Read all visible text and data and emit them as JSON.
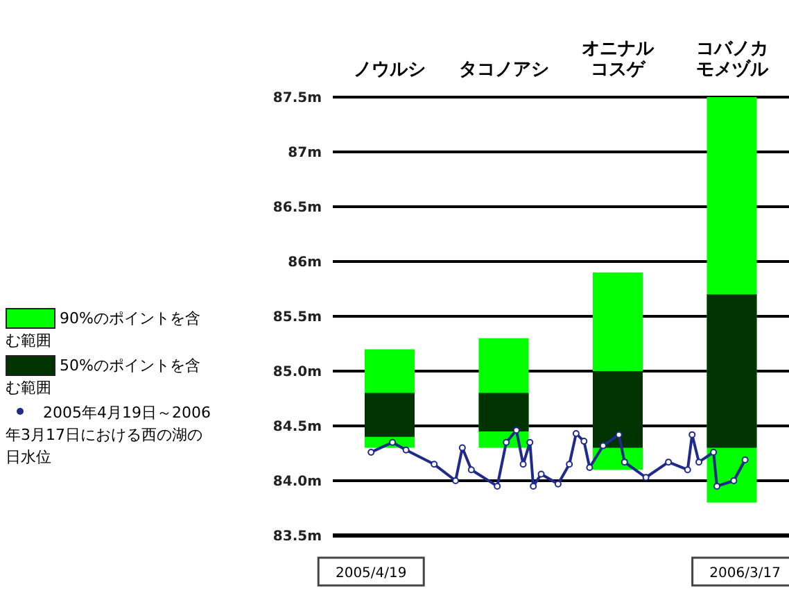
{
  "chart_data": [
    {
      "type": "bar",
      "categories": [
        "ノウルシ",
        "タコノアシ",
        "オニナルコスゲ",
        "コバノカモメヅル"
      ],
      "series": [
        {
          "name": "90%のポイントを含む範囲",
          "color": "#00ff00",
          "base": [
            84.3,
            84.3,
            84.1,
            83.8
          ],
          "values": [
            0.9,
            1.0,
            1.8,
            3.8
          ]
        },
        {
          "name": "50%のポイントを含む範囲",
          "color": "#003300",
          "base": [
            84.4,
            84.45,
            84.3,
            84.3
          ],
          "values": [
            0.4,
            0.35,
            0.7,
            1.4
          ]
        }
      ],
      "ylim": [
        83.5,
        87.5
      ],
      "yticks": [
        {
          "value": 83.5,
          "label": "83.5m"
        },
        {
          "value": 84.0,
          "label": "84.0m"
        },
        {
          "value": 84.5,
          "label": "84.5m"
        },
        {
          "value": 85.0,
          "label": "85.0m"
        },
        {
          "value": 85.5,
          "label": "85.5m"
        },
        {
          "value": 86.0,
          "label": "86m"
        },
        {
          "value": 86.5,
          "label": "86.5m"
        },
        {
          "value": 87.0,
          "label": "87m"
        },
        {
          "value": 87.5,
          "label": "87.5m"
        }
      ],
      "grid": "y",
      "legend": "left"
    },
    {
      "type": "line",
      "series": [
        {
          "name": "2005年4月19日～2006年3月17日における西の湖の日水位",
          "color": "#1f2a8a",
          "marker": "circle",
          "x": [
            "2005-04-19",
            "2005-05-08",
            "2005-05-20",
            "2005-06-14",
            "2005-07-03",
            "2005-07-09",
            "2005-07-17",
            "2005-08-09",
            "2005-08-17",
            "2005-08-26",
            "2005-09-01",
            "2005-09-07",
            "2005-09-10",
            "2005-09-17",
            "2005-10-02",
            "2005-10-12",
            "2005-10-18",
            "2005-10-25",
            "2005-10-30",
            "2005-11-11",
            "2005-11-25",
            "2005-11-30",
            "2005-12-19",
            "2006-01-08",
            "2006-01-25",
            "2006-01-29",
            "2006-02-04",
            "2006-02-17",
            "2006-02-20",
            "2006-03-07",
            "2006-03-17"
          ],
          "values": [
            84.26,
            84.35,
            84.28,
            84.15,
            84.0,
            84.3,
            84.1,
            83.95,
            84.35,
            84.46,
            84.15,
            84.35,
            83.95,
            84.06,
            83.97,
            84.15,
            84.43,
            84.36,
            84.12,
            84.32,
            84.42,
            84.17,
            84.03,
            84.17,
            84.1,
            84.42,
            84.17,
            84.26,
            83.95,
            84.0,
            84.19
          ]
        }
      ],
      "xlim": [
        "2005-03-16",
        "2006-04-25"
      ],
      "xticks": [
        {
          "value": "2005-04-19",
          "label": "2005/4/19"
        },
        {
          "value": "2006-03-17",
          "label": "2006/3/17"
        }
      ],
      "ylim": [
        83.5,
        87.5
      ],
      "tick_labels": "x",
      "legend": "left"
    }
  ]
}
